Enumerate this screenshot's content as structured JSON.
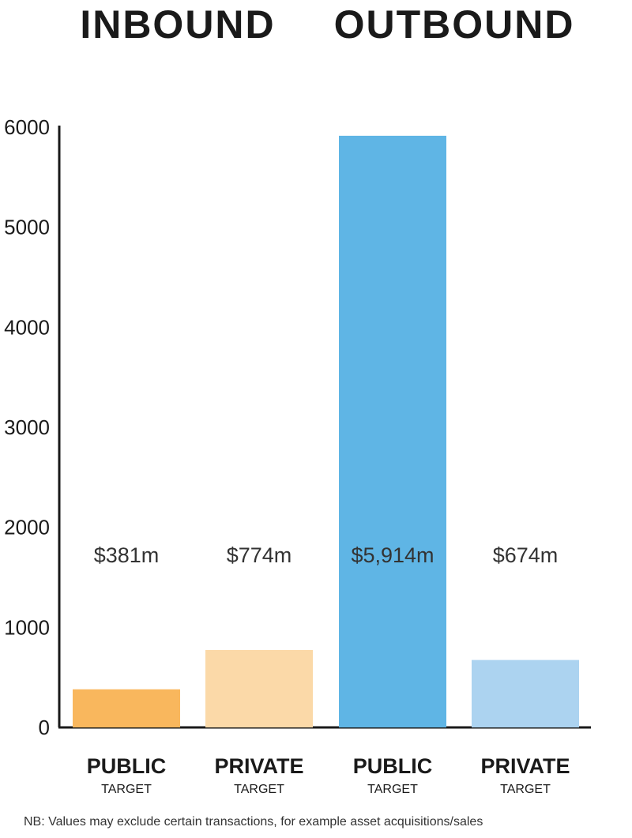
{
  "groups": {
    "inbound": "INBOUND",
    "outbound": "OUTBOUND"
  },
  "footnote": "NB: Values may exclude certain transactions, for example asset acquisitions/sales",
  "chart_data": {
    "type": "bar",
    "title": "",
    "xlabel": "",
    "ylabel": "",
    "ylim": [
      0,
      6000
    ],
    "yticks": [
      0,
      1000,
      2000,
      3000,
      4000,
      5000,
      6000
    ],
    "grid": false,
    "categories": [
      {
        "main": "PUBLIC",
        "sub": "TARGET",
        "group": "INBOUND"
      },
      {
        "main": "PRIVATE",
        "sub": "TARGET",
        "group": "INBOUND"
      },
      {
        "main": "PUBLIC",
        "sub": "TARGET",
        "group": "OUTBOUND"
      },
      {
        "main": "PRIVATE",
        "sub": "TARGET",
        "group": "OUTBOUND"
      }
    ],
    "values": [
      381,
      774,
      5914,
      674
    ],
    "data_labels": [
      "$381m",
      "$774m",
      "$5,914m",
      "$674m"
    ],
    "colors": [
      "#f9b75d",
      "#fbd9a8",
      "#5fb5e5",
      "#acd3f0"
    ]
  }
}
